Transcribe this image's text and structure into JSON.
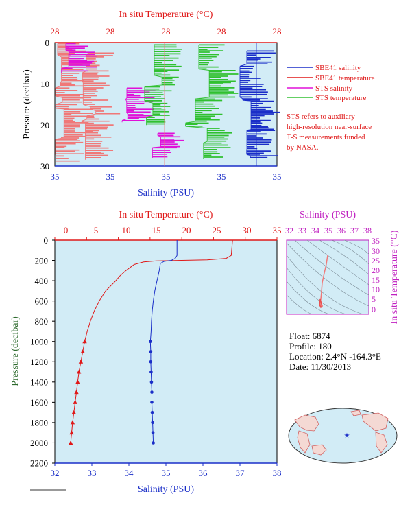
{
  "top_panel": {
    "temp_axis_label": "In situ Temperature (°C)",
    "temp_ticks": [
      "28",
      "28",
      "28",
      "28",
      "28"
    ],
    "sal_axis_label": "Salinity (PSU)",
    "sal_ticks": [
      "35",
      "35",
      "35",
      "35",
      "35"
    ],
    "pressure_label": "Pressure (decibar)",
    "pressure_ticks": [
      "0",
      "10",
      "20",
      "30"
    ],
    "legend": [
      {
        "label": "SBE41 salinity",
        "color": "#1a2ec8"
      },
      {
        "label": "SBE41 temperature",
        "color": "#e01818"
      },
      {
        "label": "STS salinity",
        "color": "#e010d8"
      },
      {
        "label": "STS temperature",
        "color": "#30c030"
      }
    ],
    "note": [
      "STS refers to auxiliary",
      "high-resolution near-surface",
      "T-S measurements funded",
      "by NASA."
    ]
  },
  "main_panel": {
    "temp_axis_label": "In situ Temperature (°C)",
    "temp_ticks": [
      "0",
      "5",
      "10",
      "15",
      "20",
      "25",
      "30",
      "35"
    ],
    "sal_axis_label": "Salinity (PSU)",
    "sal_ticks": [
      "32",
      "33",
      "34",
      "35",
      "36",
      "37",
      "38"
    ],
    "pressure_label": "Pressure (decibar)",
    "pressure_ticks": [
      "0",
      "200",
      "400",
      "600",
      "800",
      "1000",
      "1200",
      "1400",
      "1600",
      "1800",
      "2000",
      "2200"
    ]
  },
  "ts_panel": {
    "sal_axis_label": "Salinity (PSU)",
    "sal_ticks": [
      "32",
      "33",
      "34",
      "35",
      "36",
      "37",
      "38"
    ],
    "temp_axis_label": "In situ Temperature (°C)",
    "temp_ticks": [
      "0",
      "5",
      "10",
      "15",
      "20",
      "25",
      "30",
      "35"
    ]
  },
  "info": {
    "float": "Float:  6874",
    "profile": "Profile:  180",
    "location": "Location:  2.4°N  -164.3°E",
    "date": "Date:  11/30/2013"
  },
  "colors": {
    "plot_bg": "#d2ecf6",
    "temperature": "#e01818",
    "salinity": "#1a2ec8",
    "sts_salinity": "#e010d8",
    "sts_temperature": "#30c030",
    "sts_temp_pink": "#f07878",
    "pressure_label": "#2e6b2e",
    "ts_axis": "#c020c0"
  },
  "chart_data": {
    "type": "line",
    "x_temperature_range": [
      0,
      35
    ],
    "x_salinity_range": [
      32,
      38
    ],
    "y_pressure_range": [
      0,
      2200
    ],
    "grid": false,
    "series": [
      {
        "name": "In situ Temperature",
        "pressure": [
          0,
          150,
          180,
          195,
          200,
          205,
          215,
          240,
          300,
          350,
          400,
          450,
          500,
          600,
          700,
          800,
          900,
          1000,
          1100,
          1200,
          1300,
          1400,
          1500,
          1600,
          1700,
          1800,
          1900,
          2000
        ],
        "values": [
          28.0,
          27.8,
          27.0,
          24.0,
          20.0,
          16.0,
          14.0,
          12.5,
          11.2,
          10.3,
          9.6,
          8.8,
          8.0,
          7.0,
          6.2,
          5.6,
          5.1,
          4.7,
          4.4,
          4.1,
          3.8,
          3.6,
          3.4,
          3.2,
          3.0,
          2.8,
          2.65,
          2.5
        ]
      },
      {
        "name": "Salinity",
        "pressure": [
          0,
          150,
          180,
          200,
          210,
          230,
          300,
          400,
          500,
          600,
          700,
          800,
          900,
          1000,
          1100,
          1200,
          1300,
          1400,
          1500,
          1600,
          1700,
          1800,
          1900,
          2000
        ],
        "values": [
          35.3,
          35.3,
          35.25,
          35.15,
          34.95,
          34.85,
          34.82,
          34.76,
          34.7,
          34.66,
          34.63,
          34.61,
          34.6,
          34.58,
          34.59,
          34.59,
          34.6,
          34.61,
          34.62,
          34.62,
          34.63,
          34.64,
          34.65,
          34.66
        ]
      }
    ]
  }
}
